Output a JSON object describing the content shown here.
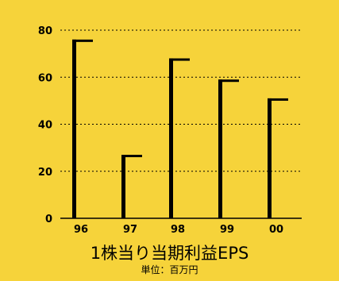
{
  "chart_data": {
    "type": "bar",
    "title": "1株当り当期利益EPS",
    "subtitle": "単位：百万円",
    "categories": [
      "96",
      "97",
      "98",
      "99",
      "00"
    ],
    "values": [
      76,
      27,
      68,
      59,
      51
    ],
    "yticks": [
      "0",
      "20",
      "40",
      "60",
      "80"
    ],
    "ylim": [
      0,
      80
    ],
    "grid": true,
    "colors": {
      "background": "#f6d33a",
      "bar": "#000000",
      "grid": "#000000"
    }
  }
}
